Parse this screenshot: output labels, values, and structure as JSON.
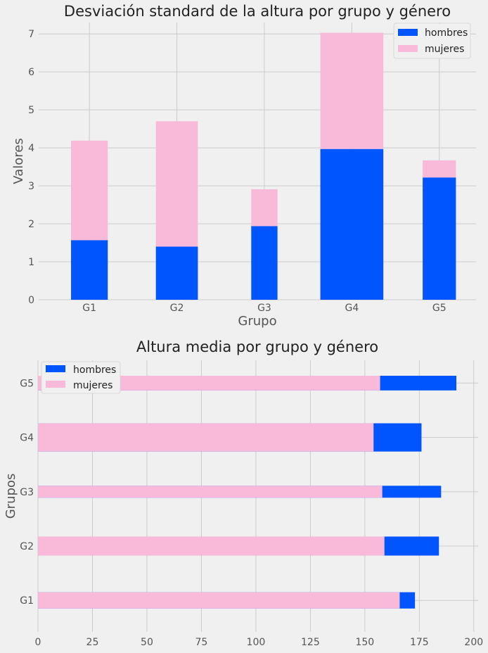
{
  "colors": {
    "background": "#f0f0f0",
    "hombres": "#0055ff",
    "mujeres": "#f9b9d9",
    "grid": "#cbcbcb"
  },
  "chart_data": [
    {
      "type": "bar",
      "stacked": true,
      "orientation": "vertical",
      "title": "Desviación standard de la altura por grupo y género",
      "xlabel": "Grupo",
      "ylabel": "Valores",
      "categories": [
        "G1",
        "G2",
        "G3",
        "G4",
        "G5"
      ],
      "bar_widths": [
        0.42,
        0.48,
        0.3,
        0.72,
        0.38
      ],
      "series": [
        {
          "name": "hombres",
          "color": "#0055ff",
          "values": [
            1.57,
            1.4,
            1.94,
            3.97,
            3.22
          ]
        },
        {
          "name": "mujeres",
          "color": "#f9b9d9",
          "values": [
            2.62,
            3.3,
            0.97,
            3.06,
            0.45
          ]
        }
      ],
      "ylim": [
        0,
        7.3
      ],
      "yticks": [
        0,
        1,
        2,
        3,
        4,
        5,
        6,
        7
      ],
      "grid": true,
      "legend": "top-right"
    },
    {
      "type": "bar",
      "stacked": false,
      "orientation": "horizontal",
      "title": "Altura media por grupo y género",
      "xlabel": "",
      "ylabel": "Grupos",
      "categories": [
        "G1",
        "G2",
        "G3",
        "G4",
        "G5"
      ],
      "bar_heights": [
        0.3,
        0.35,
        0.22,
        0.52,
        0.27
      ],
      "series": [
        {
          "name": "hombres",
          "color": "#0055ff",
          "values": [
            173,
            184,
            185,
            176,
            192
          ]
        },
        {
          "name": "mujeres",
          "color": "#f9b9d9",
          "values": [
            166,
            159,
            158,
            154,
            157
          ]
        }
      ],
      "xlim": [
        0,
        202
      ],
      "xticks": [
        0,
        25,
        50,
        75,
        100,
        125,
        150,
        175,
        200
      ],
      "grid": true,
      "legend": "top-left"
    }
  ]
}
